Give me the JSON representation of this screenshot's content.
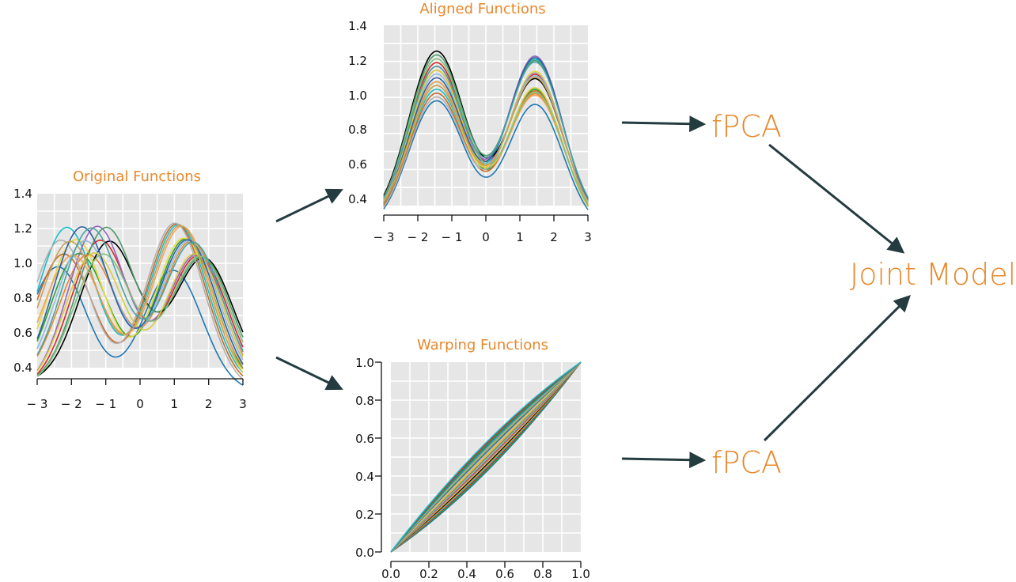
{
  "diagram": {
    "accent_color": "#e8882c",
    "arrow_color": "#243b40",
    "panels": {
      "original": {
        "title": "Original Functions",
        "x_ticks": [
          "− 3",
          "− 2",
          "− 1",
          "0",
          "1",
          "2",
          "3"
        ],
        "y_ticks": [
          "0.4",
          "0.6",
          "0.8",
          "1.0",
          "1.2",
          "1.4"
        ]
      },
      "aligned": {
        "title": "Aligned Functions",
        "x_ticks": [
          "− 3",
          "− 2",
          "− 1",
          "0",
          "1",
          "2",
          "3"
        ],
        "y_ticks": [
          "0.4",
          "0.6",
          "0.8",
          "1.0",
          "1.2",
          "1.4"
        ]
      },
      "warping": {
        "title": "Warping Functions",
        "x_ticks": [
          "0.0",
          "0.2",
          "0.4",
          "0.6",
          "0.8",
          "1.0"
        ],
        "y_ticks": [
          "0.0",
          "0.2",
          "0.4",
          "0.6",
          "0.8",
          "1.0"
        ]
      }
    },
    "nodes": {
      "fpca_top": "fPCA",
      "fpca_bottom": "fPCA",
      "joint_model": "Joint Model"
    },
    "curve_colors": [
      "#1f77b4",
      "#2ca02c",
      "#d62728",
      "#17becf",
      "#e8882c",
      "#000000",
      "#e6d93a",
      "#9467bd",
      "#c76b29",
      "#8fb8e0",
      "#4c9a6a",
      "#f0a45c",
      "#d9cb3f",
      "#b0b0b0",
      "#2f5f9f",
      "#7fbf7f",
      "#c5a15a",
      "#4aa3a3"
    ]
  }
}
